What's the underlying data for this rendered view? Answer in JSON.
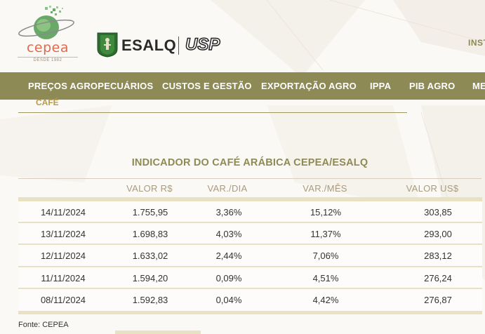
{
  "header": {
    "cepea_logo_text": "cepea",
    "cepea_since": "DESDE 1982",
    "esalq_text": "ESALQ",
    "usp_text": "USP",
    "inst_link": "INST"
  },
  "nav": {
    "items": [
      {
        "label": "PREÇOS AGROPECUÁRIOS"
      },
      {
        "label": "CUSTOS E GESTÃO"
      },
      {
        "label": "EXPORTAÇÃO AGRO"
      },
      {
        "label": "IPPA"
      },
      {
        "label": "PIB AGRO"
      },
      {
        "label": "ME"
      }
    ]
  },
  "subnav": {
    "label": "CAFÉ"
  },
  "indicator": {
    "title": "INDICADOR DO CAFÉ ARÁBICA CEPEA/ESALQ",
    "columns": [
      "",
      "VALOR R$",
      "VAR./DIA",
      "VAR./MÊS",
      "VALOR US$"
    ],
    "rows": [
      [
        "14/11/2024",
        "1.755,95",
        "3,36%",
        "15,12%",
        "303,85"
      ],
      [
        "13/11/2024",
        "1.698,83",
        "4,03%",
        "11,37%",
        "293,00"
      ],
      [
        "12/11/2024",
        "1.633,02",
        "2,44%",
        "7,06%",
        "283,12"
      ],
      [
        "11/11/2024",
        "1.594,20",
        "0,09%",
        "4,51%",
        "276,24"
      ],
      [
        "08/11/2024",
        "1.592,83",
        "0,04%",
        "4,42%",
        "276,87"
      ]
    ],
    "source": "Fonte: CEPEA"
  },
  "colors": {
    "nav_bg": "#8e8a55",
    "title": "#8e8a55",
    "row_border": "#e9e1c3",
    "cepea_orange": "#e06a4e",
    "esalq_green": "#2e6b2f"
  }
}
